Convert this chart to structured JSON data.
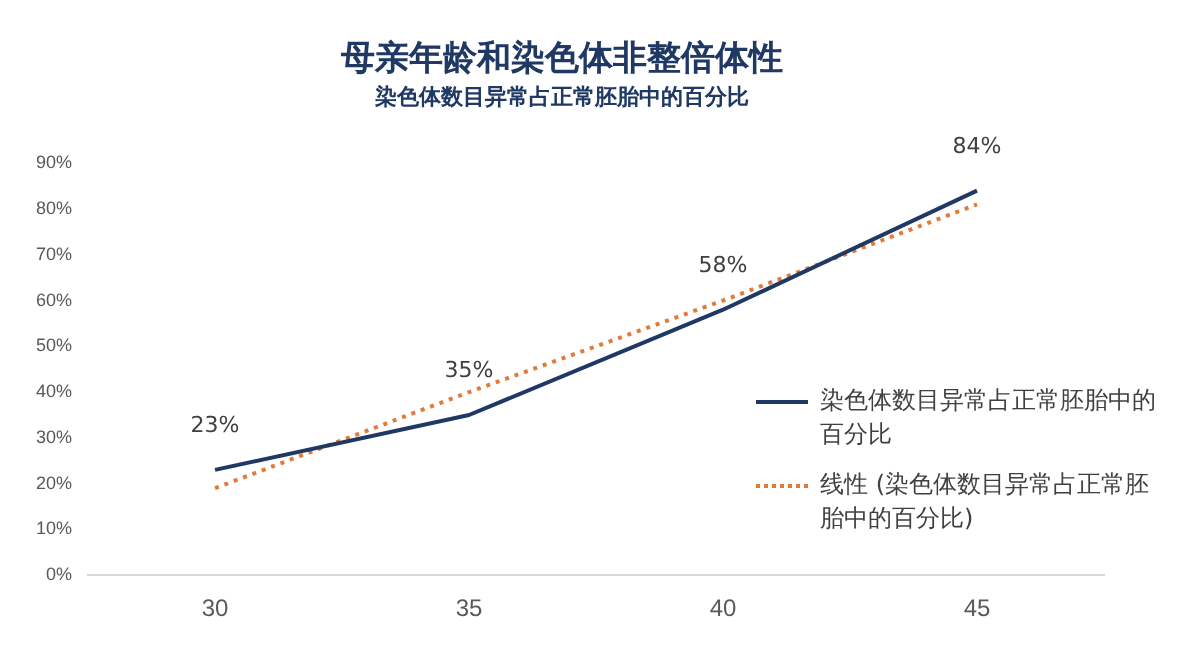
{
  "chart_data": {
    "type": "line",
    "title": "母亲年龄和染色体非整倍体性",
    "subtitle": "染色体数目异常占正常胚胎中的百分比",
    "categories": [
      "30",
      "35",
      "40",
      "45"
    ],
    "series": [
      {
        "name": "染色体数目异常占正常胚胎中的百分比",
        "color": "#1f3864",
        "values": [
          23,
          35,
          58,
          84
        ],
        "value_labels": [
          "23%",
          "35%",
          "58%",
          "84%"
        ],
        "line_style": "solid"
      },
      {
        "name": "线性 (染色体数目异常占正常胚胎中的百分比)",
        "color": "#e07b39",
        "values": [
          19,
          40,
          60,
          81
        ],
        "line_style": "dotted"
      }
    ],
    "ylim": [
      0,
      90
    ],
    "yticks": [
      {
        "value": 0,
        "label": "0%"
      },
      {
        "value": 10,
        "label": "10%"
      },
      {
        "value": 20,
        "label": "20%"
      },
      {
        "value": 30,
        "label": "30%"
      },
      {
        "value": 40,
        "label": "40%"
      },
      {
        "value": 50,
        "label": "50%"
      },
      {
        "value": 60,
        "label": "60%"
      },
      {
        "value": 70,
        "label": "70%"
      },
      {
        "value": 80,
        "label": "80%"
      },
      {
        "value": 90,
        "label": "90%"
      }
    ],
    "grid": false,
    "legend": "right",
    "marker": "none"
  }
}
